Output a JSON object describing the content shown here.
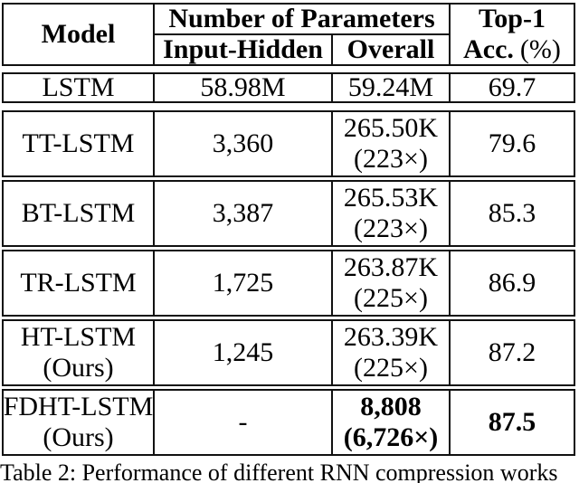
{
  "table": {
    "header": {
      "model": "Model",
      "params_group": "Number of Parameters",
      "input_hidden": "Input-Hidden",
      "overall": "Overall",
      "top1_line1": "Top-1",
      "top1_acc": "Acc.",
      "top1_pct": "(%)"
    },
    "rows": [
      {
        "model_line1": "LSTM",
        "model_line2": "",
        "input_hidden": "58.98M",
        "overall_line1": "59.24M",
        "overall_line2": "",
        "acc": "69.7"
      },
      {
        "model_line1": "TT-LSTM",
        "model_line2": "",
        "input_hidden": "3,360",
        "overall_line1": "265.50K",
        "overall_line2": "(223×)",
        "acc": "79.6"
      },
      {
        "model_line1": "BT-LSTM",
        "model_line2": "",
        "input_hidden": "3,387",
        "overall_line1": "265.53K",
        "overall_line2": "(223×)",
        "acc": "85.3"
      },
      {
        "model_line1": "TR-LSTM",
        "model_line2": "",
        "input_hidden": "1,725",
        "overall_line1": "263.87K",
        "overall_line2": "(225×)",
        "acc": "86.9"
      },
      {
        "model_line1": "HT-LSTM",
        "model_line2": "(Ours)",
        "input_hidden": "1,245",
        "overall_line1": "263.39K",
        "overall_line2": "(225×)",
        "acc": "87.2"
      },
      {
        "model_line1": "FDHT-LSTM",
        "model_line2": "(Ours)",
        "input_hidden": "-",
        "overall_line1": "8,808",
        "overall_line2": "(6,726×)",
        "acc": "87.5"
      }
    ]
  },
  "caption": "Table 2: Performance of different RNN compression works",
  "colors": {
    "text": "#000000",
    "border": "#111111",
    "background": "#ffffff"
  }
}
